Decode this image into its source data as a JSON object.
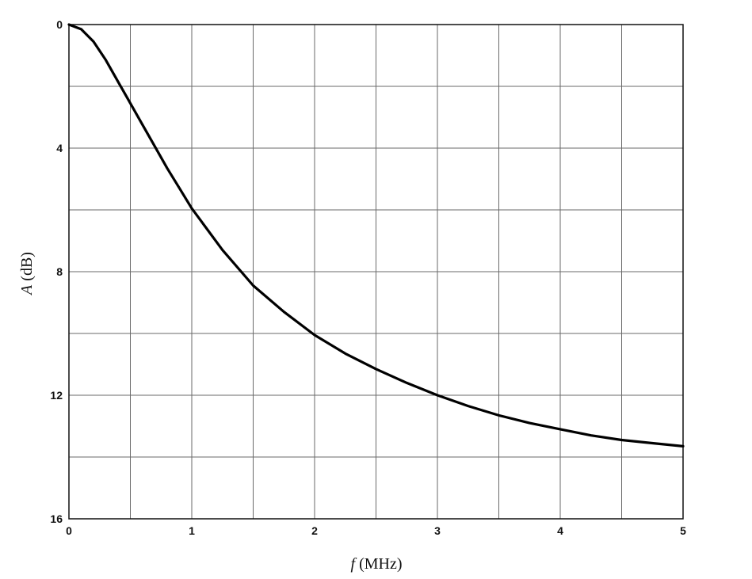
{
  "chart_data": {
    "type": "line",
    "title": "",
    "xlabel_symbol": "f",
    "xlabel_unit": "(MHz)",
    "ylabel_symbol": "A",
    "ylabel_unit": "(dB)",
    "xlim": [
      0,
      5
    ],
    "ylim": [
      0,
      16
    ],
    "y_inverted": true,
    "x_ticks": [
      0,
      1,
      2,
      3,
      4,
      5
    ],
    "y_ticks": [
      0,
      4,
      8,
      12,
      16
    ],
    "x_grid_step": 0.5,
    "y_grid_step": 2,
    "grid": true,
    "series": [
      {
        "color": "#000000",
        "x": [
          0,
          0.1,
          0.2,
          0.3,
          0.4,
          0.5,
          0.6,
          0.7,
          0.8,
          0.9,
          1.0,
          1.25,
          1.5,
          1.75,
          2.0,
          2.25,
          2.5,
          2.75,
          3.0,
          3.25,
          3.5,
          3.75,
          4.0,
          4.25,
          4.5,
          4.75,
          5.0
        ],
        "y": [
          0,
          0.15,
          0.55,
          1.15,
          1.85,
          2.55,
          3.25,
          3.95,
          4.65,
          5.3,
          5.95,
          7.3,
          8.45,
          9.3,
          10.05,
          10.65,
          11.15,
          11.6,
          12.0,
          12.35,
          12.65,
          12.9,
          13.1,
          13.3,
          13.45,
          13.55,
          13.65
        ]
      }
    ]
  }
}
